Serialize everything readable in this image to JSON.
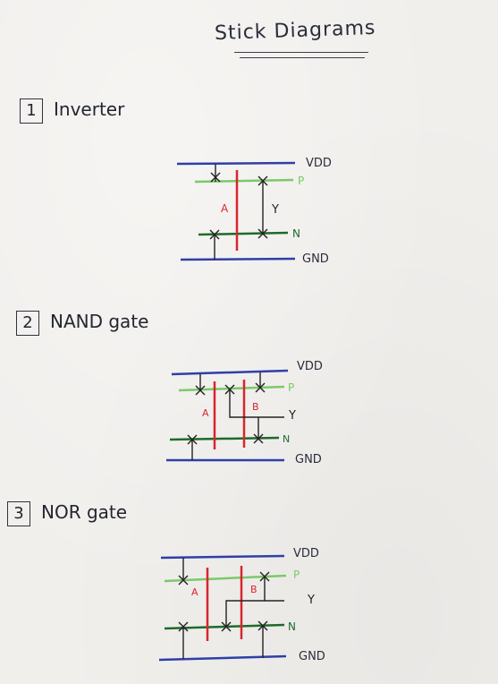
{
  "title": "Stick Diagrams",
  "sections": [
    {
      "number": "1",
      "name": "Inverter"
    },
    {
      "number": "2",
      "name": "NAND gate"
    },
    {
      "number": "3",
      "name": "NOR gate"
    }
  ],
  "labels": {
    "vdd": "VDD",
    "gnd": "GND",
    "p": "P",
    "n": "N",
    "y": "Y",
    "a": "A",
    "b": "B"
  },
  "colors": {
    "metal": "#2e3fa8",
    "poly": "#d8262e",
    "pdiff": "#7bc96a",
    "ndiff": "#1f6a2a",
    "wire": "#222222",
    "text": "#2a2d3a"
  }
}
